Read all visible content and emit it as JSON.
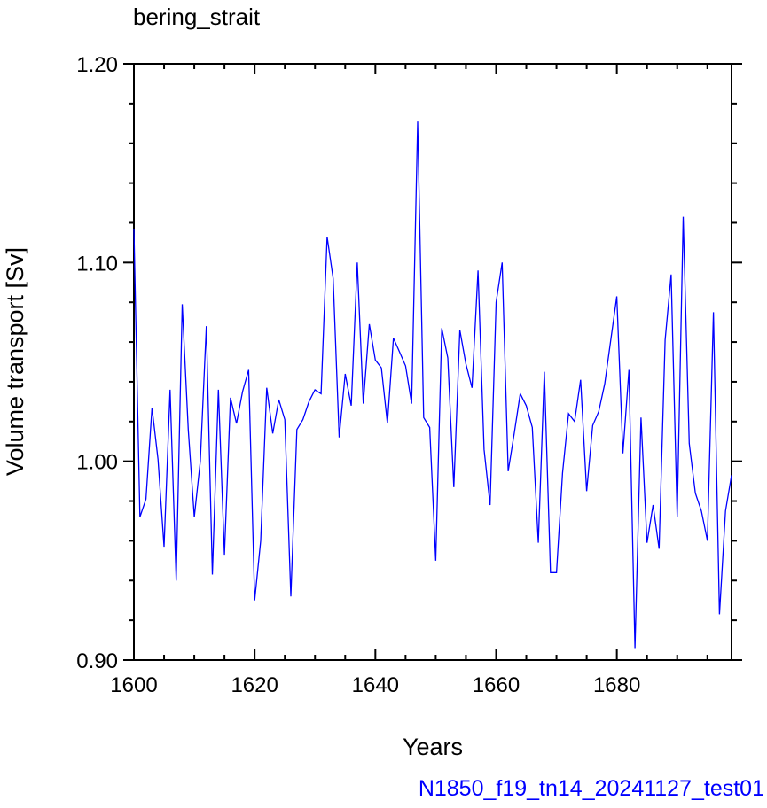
{
  "chart_data": {
    "type": "line",
    "title": "bering_strait",
    "xlabel": "Years",
    "ylabel": "Volume transport [Sv]",
    "caption": "N1850_f19_tn14_20241127_test01",
    "xlim": [
      1600,
      1699
    ],
    "ylim": [
      0.9,
      1.2
    ],
    "xticks": [
      1600,
      1620,
      1640,
      1660,
      1680
    ],
    "xtick_labels": [
      "1600",
      "1620",
      "1640",
      "1660",
      "1680"
    ],
    "yticks": [
      0.9,
      1.0,
      1.1,
      1.2
    ],
    "ytick_labels": [
      "0.90",
      "1.00",
      "1.10",
      "1.20"
    ],
    "series": [
      {
        "color": "#0000ff",
        "x": [
          1600,
          1601,
          1602,
          1603,
          1604,
          1605,
          1606,
          1607,
          1608,
          1609,
          1610,
          1611,
          1612,
          1613,
          1614,
          1615,
          1616,
          1617,
          1618,
          1619,
          1620,
          1621,
          1622,
          1623,
          1624,
          1625,
          1626,
          1627,
          1628,
          1629,
          1630,
          1631,
          1632,
          1633,
          1634,
          1635,
          1636,
          1637,
          1638,
          1639,
          1640,
          1641,
          1642,
          1643,
          1644,
          1645,
          1646,
          1647,
          1648,
          1649,
          1650,
          1651,
          1652,
          1653,
          1654,
          1655,
          1656,
          1657,
          1658,
          1659,
          1660,
          1661,
          1662,
          1663,
          1664,
          1665,
          1666,
          1667,
          1668,
          1669,
          1670,
          1671,
          1672,
          1673,
          1674,
          1675,
          1676,
          1677,
          1678,
          1679,
          1680,
          1681,
          1682,
          1683,
          1684,
          1685,
          1686,
          1687,
          1688,
          1689,
          1690,
          1691,
          1692,
          1693,
          1694,
          1695,
          1696,
          1697,
          1698,
          1699
        ],
        "values": [
          1.117,
          0.972,
          0.981,
          1.027,
          1.001,
          0.957,
          1.036,
          0.94,
          1.079,
          1.016,
          0.972,
          1.0,
          1.068,
          0.943,
          1.036,
          0.953,
          1.032,
          1.019,
          1.035,
          1.046,
          0.93,
          0.96,
          1.037,
          1.014,
          1.031,
          1.021,
          0.932,
          1.016,
          1.021,
          1.03,
          1.036,
          1.034,
          1.113,
          1.092,
          1.012,
          1.044,
          1.028,
          1.1,
          1.029,
          1.069,
          1.051,
          1.047,
          1.019,
          1.062,
          1.055,
          1.048,
          1.029,
          1.171,
          1.022,
          1.017,
          0.95,
          1.067,
          1.052,
          0.987,
          1.066,
          1.049,
          1.037,
          1.096,
          1.006,
          0.978,
          1.08,
          1.1,
          0.995,
          1.014,
          1.034,
          1.028,
          1.017,
          0.959,
          1.045,
          0.944,
          0.944,
          0.994,
          1.024,
          1.02,
          1.041,
          0.985,
          1.018,
          1.025,
          1.039,
          1.061,
          1.083,
          1.004,
          1.046,
          0.906,
          1.022,
          0.959,
          0.978,
          0.956,
          1.061,
          1.094,
          0.972,
          1.123,
          1.009,
          0.984,
          0.975,
          0.96,
          1.075,
          0.923,
          0.975,
          0.993
        ]
      }
    ],
    "grid": false
  }
}
